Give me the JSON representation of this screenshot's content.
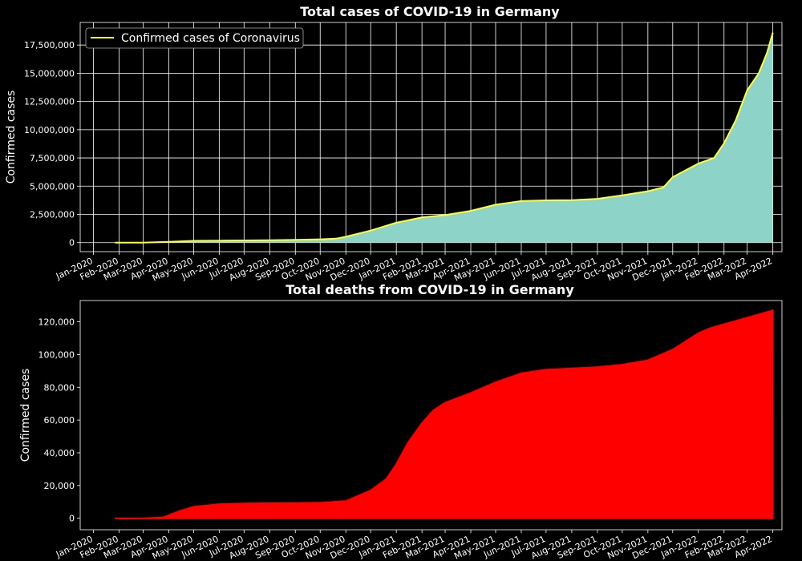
{
  "chart_data": [
    {
      "type": "area",
      "title": "Total cases of COVID-19 in Germany",
      "xlabel": "",
      "ylabel": "Confirmed cases",
      "x_range": [
        "2019-12-16",
        "2022-04-12"
      ],
      "ylim": [
        -800000,
        19500000
      ],
      "yticks": [
        0,
        2500000,
        5000000,
        7500000,
        10000000,
        12500000,
        15000000,
        17500000
      ],
      "ytick_labels": [
        "0",
        "2,500,000",
        "5,000,000",
        "7,500,000",
        "10,000,000",
        "12,500,000",
        "15,000,000",
        "17,500,000"
      ],
      "grid": true,
      "legend": {
        "placement": "upper-left",
        "entries": [
          "Confirmed cases of Coronavirus"
        ]
      },
      "fill_color": "#8dd3c7",
      "line_color": "#ffff33",
      "series": [
        {
          "name": "Confirmed cases of Coronavirus",
          "x": [
            "2020-01-27",
            "2020-03-01",
            "2020-04-01",
            "2020-05-01",
            "2020-06-01",
            "2020-07-01",
            "2020-08-01",
            "2020-09-01",
            "2020-10-01",
            "2020-10-20",
            "2020-11-01",
            "2020-12-01",
            "2021-01-01",
            "2021-02-01",
            "2021-03-01",
            "2021-04-01",
            "2021-05-01",
            "2021-06-01",
            "2021-07-01",
            "2021-08-01",
            "2021-09-01",
            "2021-10-01",
            "2021-11-01",
            "2021-11-20",
            "2021-12-01",
            "2022-01-01",
            "2022-01-20",
            "2022-02-01",
            "2022-02-15",
            "2022-03-01",
            "2022-03-15",
            "2022-03-25",
            "2022-04-01"
          ],
          "y": [
            0,
            100,
            70000,
            160000,
            180000,
            195000,
            210000,
            240000,
            295000,
            350000,
            520000,
            1070000,
            1760000,
            2230000,
            2440000,
            2810000,
            3360000,
            3680000,
            3740000,
            3760000,
            3880000,
            4190000,
            4550000,
            4900000,
            5800000,
            7000000,
            7500000,
            8800000,
            10800000,
            13500000,
            15000000,
            16800000,
            18600000
          ]
        }
      ]
    },
    {
      "type": "area",
      "title": "Total deaths from COVID-19 in Germany",
      "xlabel": "",
      "ylabel": "Confirmed cases",
      "x_range": [
        "2019-12-16",
        "2022-04-12"
      ],
      "ylim": [
        -7000,
        133000
      ],
      "yticks": [
        0,
        20000,
        40000,
        60000,
        80000,
        100000,
        120000
      ],
      "ytick_labels": [
        "0",
        "20,000",
        "40,000",
        "60,000",
        "80,000",
        "100,000",
        "120,000"
      ],
      "grid": false,
      "fill_color": "#ff0000",
      "series": [
        {
          "name": "",
          "x": [
            "2020-01-27",
            "2020-03-01",
            "2020-03-25",
            "2020-04-15",
            "2020-05-01",
            "2020-06-01",
            "2020-07-01",
            "2020-08-01",
            "2020-09-01",
            "2020-10-01",
            "2020-11-01",
            "2020-12-01",
            "2020-12-20",
            "2021-01-01",
            "2021-01-15",
            "2021-02-01",
            "2021-02-15",
            "2021-03-01",
            "2021-04-01",
            "2021-05-01",
            "2021-06-01",
            "2021-07-01",
            "2021-08-01",
            "2021-09-01",
            "2021-10-01",
            "2021-11-01",
            "2021-12-01",
            "2022-01-01",
            "2022-01-15",
            "2022-02-01",
            "2022-03-01",
            "2022-04-01"
          ],
          "y": [
            0,
            0,
            500,
            4500,
            7000,
            8600,
            9000,
            9200,
            9300,
            9500,
            10500,
            17000,
            24000,
            33000,
            46000,
            58000,
            66000,
            70500,
            76500,
            83000,
            88500,
            90800,
            91500,
            92300,
            93800,
            96500,
            103000,
            113000,
            116000,
            118500,
            122500,
            127000
          ]
        }
      ]
    }
  ],
  "x_axis": {
    "ticks": [
      "2020-01-01",
      "2020-02-01",
      "2020-03-01",
      "2020-04-01",
      "2020-05-01",
      "2020-06-01",
      "2020-07-01",
      "2020-08-01",
      "2020-09-01",
      "2020-10-01",
      "2020-11-01",
      "2020-12-01",
      "2021-01-01",
      "2021-02-01",
      "2021-03-01",
      "2021-04-01",
      "2021-05-01",
      "2021-06-01",
      "2021-07-01",
      "2021-08-01",
      "2021-09-01",
      "2021-10-01",
      "2021-11-01",
      "2021-12-01",
      "2022-01-01",
      "2022-02-01",
      "2022-03-01",
      "2022-04-01"
    ],
    "tick_labels": [
      "Jan-2020",
      "Feb-2020",
      "Mar-2020",
      "Apr-2020",
      "May-2020",
      "Jun-2020",
      "Jul-2020",
      "Aug-2020",
      "Sep-2020",
      "Oct-2020",
      "Nov-2020",
      "Dec-2020",
      "Jan-2021",
      "Feb-2021",
      "Mar-2021",
      "Apr-2021",
      "May-2021",
      "Jun-2021",
      "Jul-2021",
      "Aug-2021",
      "Sep-2021",
      "Oct-2021",
      "Nov-2021",
      "Dec-2021",
      "Jan-2022",
      "Feb-2022",
      "Mar-2022",
      "Apr-2022"
    ]
  }
}
